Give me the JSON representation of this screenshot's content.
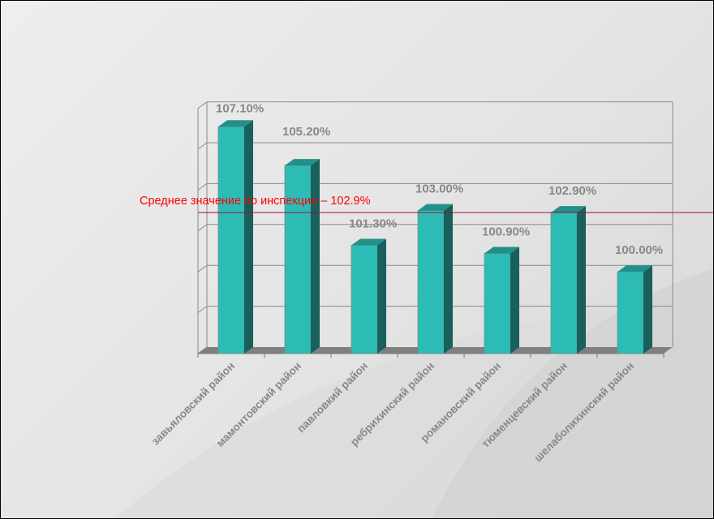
{
  "chart_data": {
    "type": "bar",
    "title": "",
    "xlabel": "",
    "ylabel": "",
    "categories": [
      "завьяловский район",
      "мамонтовский район",
      "павловкий район",
      "ребрихинский район",
      "романовский район",
      "тюменцевский район",
      "шелаболихинский район"
    ],
    "values": [
      107.1,
      105.2,
      101.3,
      103.0,
      100.9,
      102.9,
      100.0
    ],
    "data_labels": [
      "107.10%",
      "105.20%",
      "101.30%",
      "103.00%",
      "100.90%",
      "102.90%",
      "100.00%"
    ],
    "ylim": [
      96,
      108
    ],
    "ystep": 2,
    "grid": true,
    "y_tick_labels_shown": false,
    "reference_line": {
      "value": 102.9,
      "label": "Среднее значение по инспекции – 102.9%",
      "color": "#ff0000",
      "line_color": "#a0103a"
    },
    "colors": {
      "bar_front": "#2dbcb5",
      "bar_side": "#18605c",
      "bar_top": "#219089",
      "floor": "#808080",
      "grid": "#8a8a8a",
      "label": "#888888"
    }
  }
}
